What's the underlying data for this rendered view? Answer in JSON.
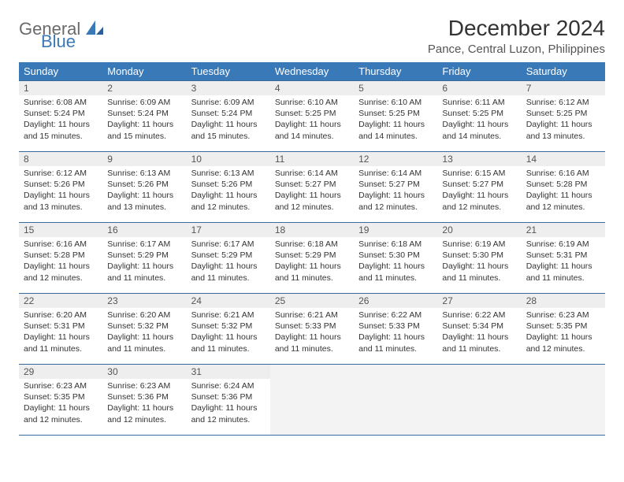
{
  "brand": {
    "general": "General",
    "blue": "Blue"
  },
  "title": "December 2024",
  "location": "Pance, Central Luzon, Philippines",
  "colors": {
    "header_bg": "#3a79b7",
    "header_text": "#ffffff",
    "daynum_bg": "#eeeeee",
    "border": "#3a6a9a",
    "brand_blue": "#3a79b7",
    "brand_gray": "#6a6a6a"
  },
  "weekdays": [
    "Sunday",
    "Monday",
    "Tuesday",
    "Wednesday",
    "Thursday",
    "Friday",
    "Saturday"
  ],
  "weeks": [
    [
      {
        "n": "1",
        "sr": "6:08 AM",
        "ss": "5:24 PM",
        "dl": "11 hours and 15 minutes."
      },
      {
        "n": "2",
        "sr": "6:09 AM",
        "ss": "5:24 PM",
        "dl": "11 hours and 15 minutes."
      },
      {
        "n": "3",
        "sr": "6:09 AM",
        "ss": "5:24 PM",
        "dl": "11 hours and 15 minutes."
      },
      {
        "n": "4",
        "sr": "6:10 AM",
        "ss": "5:25 PM",
        "dl": "11 hours and 14 minutes."
      },
      {
        "n": "5",
        "sr": "6:10 AM",
        "ss": "5:25 PM",
        "dl": "11 hours and 14 minutes."
      },
      {
        "n": "6",
        "sr": "6:11 AM",
        "ss": "5:25 PM",
        "dl": "11 hours and 14 minutes."
      },
      {
        "n": "7",
        "sr": "6:12 AM",
        "ss": "5:25 PM",
        "dl": "11 hours and 13 minutes."
      }
    ],
    [
      {
        "n": "8",
        "sr": "6:12 AM",
        "ss": "5:26 PM",
        "dl": "11 hours and 13 minutes."
      },
      {
        "n": "9",
        "sr": "6:13 AM",
        "ss": "5:26 PM",
        "dl": "11 hours and 13 minutes."
      },
      {
        "n": "10",
        "sr": "6:13 AM",
        "ss": "5:26 PM",
        "dl": "11 hours and 12 minutes."
      },
      {
        "n": "11",
        "sr": "6:14 AM",
        "ss": "5:27 PM",
        "dl": "11 hours and 12 minutes."
      },
      {
        "n": "12",
        "sr": "6:14 AM",
        "ss": "5:27 PM",
        "dl": "11 hours and 12 minutes."
      },
      {
        "n": "13",
        "sr": "6:15 AM",
        "ss": "5:27 PM",
        "dl": "11 hours and 12 minutes."
      },
      {
        "n": "14",
        "sr": "6:16 AM",
        "ss": "5:28 PM",
        "dl": "11 hours and 12 minutes."
      }
    ],
    [
      {
        "n": "15",
        "sr": "6:16 AM",
        "ss": "5:28 PM",
        "dl": "11 hours and 12 minutes."
      },
      {
        "n": "16",
        "sr": "6:17 AM",
        "ss": "5:29 PM",
        "dl": "11 hours and 11 minutes."
      },
      {
        "n": "17",
        "sr": "6:17 AM",
        "ss": "5:29 PM",
        "dl": "11 hours and 11 minutes."
      },
      {
        "n": "18",
        "sr": "6:18 AM",
        "ss": "5:29 PM",
        "dl": "11 hours and 11 minutes."
      },
      {
        "n": "19",
        "sr": "6:18 AM",
        "ss": "5:30 PM",
        "dl": "11 hours and 11 minutes."
      },
      {
        "n": "20",
        "sr": "6:19 AM",
        "ss": "5:30 PM",
        "dl": "11 hours and 11 minutes."
      },
      {
        "n": "21",
        "sr": "6:19 AM",
        "ss": "5:31 PM",
        "dl": "11 hours and 11 minutes."
      }
    ],
    [
      {
        "n": "22",
        "sr": "6:20 AM",
        "ss": "5:31 PM",
        "dl": "11 hours and 11 minutes."
      },
      {
        "n": "23",
        "sr": "6:20 AM",
        "ss": "5:32 PM",
        "dl": "11 hours and 11 minutes."
      },
      {
        "n": "24",
        "sr": "6:21 AM",
        "ss": "5:32 PM",
        "dl": "11 hours and 11 minutes."
      },
      {
        "n": "25",
        "sr": "6:21 AM",
        "ss": "5:33 PM",
        "dl": "11 hours and 11 minutes."
      },
      {
        "n": "26",
        "sr": "6:22 AM",
        "ss": "5:33 PM",
        "dl": "11 hours and 11 minutes."
      },
      {
        "n": "27",
        "sr": "6:22 AM",
        "ss": "5:34 PM",
        "dl": "11 hours and 11 minutes."
      },
      {
        "n": "28",
        "sr": "6:23 AM",
        "ss": "5:35 PM",
        "dl": "11 hours and 12 minutes."
      }
    ],
    [
      {
        "n": "29",
        "sr": "6:23 AM",
        "ss": "5:35 PM",
        "dl": "11 hours and 12 minutes."
      },
      {
        "n": "30",
        "sr": "6:23 AM",
        "ss": "5:36 PM",
        "dl": "11 hours and 12 minutes."
      },
      {
        "n": "31",
        "sr": "6:24 AM",
        "ss": "5:36 PM",
        "dl": "11 hours and 12 minutes."
      },
      null,
      null,
      null,
      null
    ]
  ],
  "labels": {
    "sunrise": "Sunrise:",
    "sunset": "Sunset:",
    "daylight": "Daylight:"
  }
}
